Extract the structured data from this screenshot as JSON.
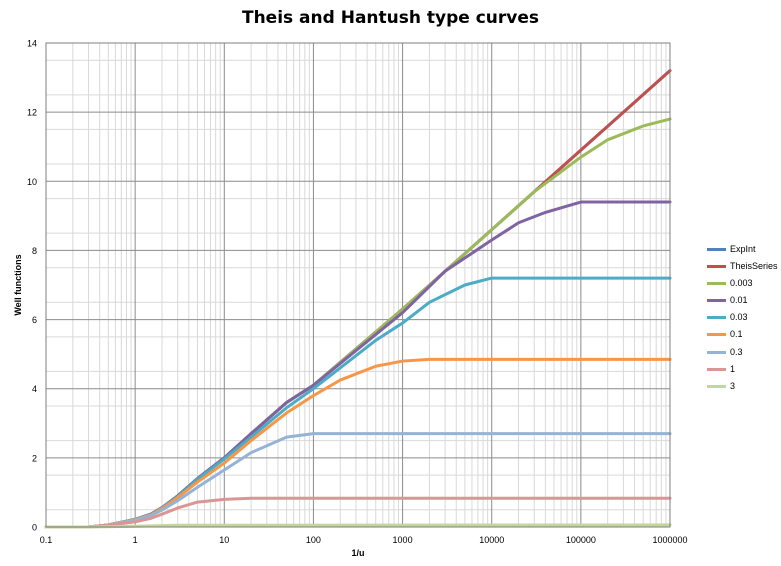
{
  "chart_data": {
    "type": "line",
    "title": "Theis and Hantush type curves",
    "xlabel": "1/u",
    "ylabel": "Well functions",
    "x_scale": "log",
    "xlim": [
      0.1,
      1000000
    ],
    "ylim": [
      0,
      14
    ],
    "grid": true,
    "legend_position": "right",
    "x_ticks": [
      "0.1",
      "1",
      "10",
      "100",
      "1000",
      "10000",
      "100000",
      "1000000"
    ],
    "y_ticks": [
      "0",
      "2",
      "4",
      "6",
      "8",
      "10",
      "12",
      "14"
    ],
    "series": [
      {
        "name": "ExpInt",
        "color": "#4f81bd",
        "x": [
          0.1,
          0.3,
          0.5,
          1,
          1.5,
          2,
          3,
          5,
          10,
          20,
          50,
          100,
          1000,
          10000,
          100000,
          1000000
        ],
        "y": [
          0,
          0,
          0.06,
          0.22,
          0.37,
          0.56,
          0.9,
          1.4,
          2.0,
          2.7,
          3.6,
          4.1,
          6.3,
          8.6,
          10.9,
          13.2
        ]
      },
      {
        "name": "TheisSeries",
        "color": "#c0504d",
        "x": [
          0.1,
          0.3,
          0.5,
          1,
          1.5,
          2,
          3,
          5,
          10,
          20,
          50,
          100,
          1000,
          10000,
          100000,
          1000000
        ],
        "y": [
          0,
          0,
          0.06,
          0.22,
          0.37,
          0.56,
          0.9,
          1.4,
          2.0,
          2.7,
          3.6,
          4.1,
          6.3,
          8.6,
          10.9,
          13.2
        ]
      },
      {
        "name": "0.003",
        "color": "#9bbb59",
        "x": [
          0.1,
          0.3,
          0.5,
          1,
          1.5,
          2,
          3,
          5,
          10,
          20,
          50,
          100,
          1000,
          10000,
          30000,
          100000,
          200000,
          500000,
          1000000
        ],
        "y": [
          0,
          0,
          0.06,
          0.22,
          0.37,
          0.56,
          0.9,
          1.4,
          2.0,
          2.7,
          3.6,
          4.1,
          6.3,
          8.6,
          9.7,
          10.7,
          11.2,
          11.6,
          11.8
        ]
      },
      {
        "name": "0.01",
        "color": "#8064a2",
        "x": [
          0.1,
          0.3,
          0.5,
          1,
          1.5,
          2,
          3,
          5,
          10,
          20,
          50,
          100,
          1000,
          3000,
          10000,
          20000,
          40000,
          100000,
          1000000
        ],
        "y": [
          0,
          0,
          0.06,
          0.22,
          0.37,
          0.56,
          0.9,
          1.4,
          2.0,
          2.7,
          3.6,
          4.1,
          6.2,
          7.4,
          8.3,
          8.8,
          9.1,
          9.4,
          9.4
        ]
      },
      {
        "name": "0.03",
        "color": "#4bacc6",
        "x": [
          0.1,
          0.3,
          0.5,
          1,
          1.5,
          2,
          3,
          5,
          10,
          20,
          50,
          100,
          500,
          1000,
          2000,
          5000,
          10000,
          1000000
        ],
        "y": [
          0,
          0,
          0.06,
          0.22,
          0.36,
          0.55,
          0.88,
          1.38,
          1.97,
          2.6,
          3.45,
          4.0,
          5.4,
          5.9,
          6.5,
          7.0,
          7.2,
          7.2
        ]
      },
      {
        "name": "0.1",
        "color": "#f79646",
        "x": [
          0.1,
          0.3,
          0.5,
          1,
          1.5,
          2,
          3,
          5,
          10,
          20,
          50,
          100,
          200,
          500,
          1000,
          2000,
          1000000
        ],
        "y": [
          0,
          0,
          0.06,
          0.21,
          0.35,
          0.53,
          0.85,
          1.3,
          1.85,
          2.5,
          3.3,
          3.8,
          4.25,
          4.65,
          4.8,
          4.85,
          4.85
        ]
      },
      {
        "name": "0.3",
        "color": "#95b3d7",
        "x": [
          0.1,
          0.3,
          0.5,
          1,
          1.5,
          2,
          3,
          5,
          10,
          20,
          50,
          100,
          1000000
        ],
        "y": [
          0,
          0,
          0.06,
          0.2,
          0.33,
          0.49,
          0.76,
          1.15,
          1.65,
          2.15,
          2.6,
          2.7,
          2.7
        ]
      },
      {
        "name": "1",
        "color": "#d99694",
        "x": [
          0.1,
          0.3,
          0.5,
          1,
          1.5,
          2,
          3,
          5,
          10,
          20,
          1000000
        ],
        "y": [
          0,
          0,
          0.05,
          0.15,
          0.25,
          0.37,
          0.55,
          0.72,
          0.8,
          0.83,
          0.83
        ]
      },
      {
        "name": "3",
        "color": "#c3d69b",
        "x": [
          0.1,
          0.3,
          1,
          3,
          1000000
        ],
        "y": [
          0,
          0,
          0.02,
          0.05,
          0.06
        ]
      }
    ]
  }
}
